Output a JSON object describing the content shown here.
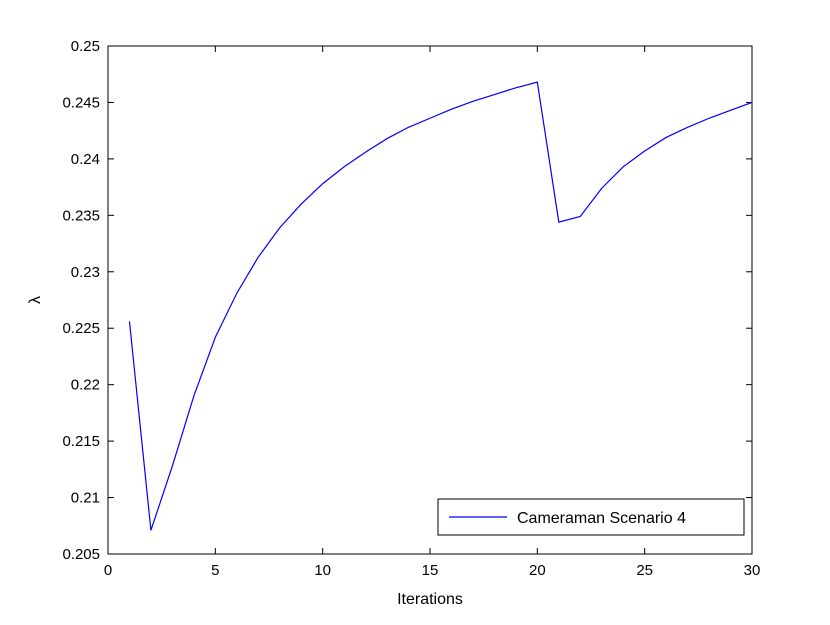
{
  "chart_data": {
    "type": "line",
    "title": "",
    "xlabel": "Iterations",
    "ylabel": "λ",
    "xlim": [
      0,
      30
    ],
    "ylim": [
      0.205,
      0.25
    ],
    "xticks": [
      0,
      5,
      10,
      15,
      20,
      25,
      30
    ],
    "xtick_labels": [
      "0",
      "5",
      "10",
      "15",
      "20",
      "25",
      "30"
    ],
    "yticks": [
      0.205,
      0.21,
      0.215,
      0.22,
      0.225,
      0.23,
      0.235,
      0.24,
      0.245,
      0.25
    ],
    "ytick_labels": [
      "0.205",
      "0.21",
      "0.215",
      "0.22",
      "0.225",
      "0.23",
      "0.235",
      "0.24",
      "0.245",
      "0.25"
    ],
    "grid": false,
    "legend_position": "bottom-right",
    "series": [
      {
        "name": "Cameraman Scenario 4",
        "color": "#0000ff",
        "x": [
          1,
          2,
          3,
          4,
          5,
          6,
          7,
          8,
          9,
          10,
          11,
          12,
          13,
          14,
          15,
          16,
          17,
          18,
          19,
          20,
          21,
          22,
          23,
          24,
          25,
          26,
          27,
          28,
          29,
          30
        ],
        "y": [
          0.2256,
          0.2071,
          0.2128,
          0.219,
          0.2242,
          0.2281,
          0.2313,
          0.2339,
          0.236,
          0.2378,
          0.2393,
          0.2406,
          0.2418,
          0.2428,
          0.2436,
          0.2444,
          0.2451,
          0.2457,
          0.2463,
          0.2468,
          0.2344,
          0.2349,
          0.2374,
          0.2393,
          0.2407,
          0.2419,
          0.2428,
          0.2436,
          0.2443,
          0.245
        ]
      }
    ]
  }
}
